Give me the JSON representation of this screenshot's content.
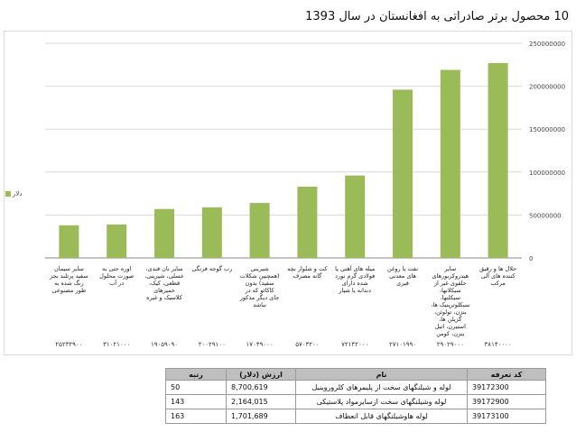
{
  "chart_data": {
    "type": "bar",
    "title": "10 محصول برتر صادراتی به افغانستان در سال 1393",
    "legend": {
      "label": "دلار",
      "position": "left"
    },
    "categories": [
      "سایر سیمان سفید پرتلند بجز رنگ شده به طور مصنوعی",
      "اوره حتی به صورت محلول در آب",
      "سایر نان قندی، عسلی، شیرینی، قطعی، کیک، خمیرهای کلاسیک و غیره",
      "رب گوجه فرنگی",
      "شیرینی (همچنین شکلات سفید) بدون کاکائو که در جای دیگر مذکور نباشد",
      "کت و شلوار بچه گانه مصرف",
      "میله های آهنی یا فولادی گرم نورد شده دارای دندانه یا شیار",
      "نفت یا روغن های معدنی قیری",
      "سایر هیدروکربورهای حلقوی غیر از سیکلانها، سیکلنها، سیکلوترپنیک ها، بنزن، تولوئن، گزیلن ها، استیرن، اتیل بنزن، کومن",
      "حلال ها و رقیق کننده های آلی مرکب"
    ],
    "values": [
      38000000,
      39000000,
      57000000,
      59000000,
      64000000,
      83000000,
      96000000,
      196000000,
      219000000,
      227000000
    ],
    "codes": [
      "۲۵۲۳۲۹۰۰",
      "۳۱۰۲۱۰۰۰",
      "۱۹۰۵۹۰۹۰",
      "۲۰۰۲۹۱۰۰",
      "۱۷۰۴۹۰۰۰",
      "۵۷۰۳۲۰۰",
      "۷۲۱۴۲۰۰۰",
      "۲۷۱۰۱۹۹۰",
      "۲۹۰۲۹۰۰۰",
      "۳۸۱۴۰۰۰۰"
    ],
    "y_ticks": [
      "0",
      "50000000",
      "100000000",
      "150000000",
      "200000000",
      "250000000"
    ],
    "ylim": [
      0,
      250000000
    ],
    "xlabel": "",
    "ylabel": "",
    "grid": true,
    "colors": {
      "bar": "#9bbb59",
      "grid": "#d9d9d9",
      "axis": "#888888"
    }
  },
  "table": {
    "headers": {
      "code": "کد تعرفه",
      "name": "نام",
      "value": "ارزش (دلار)",
      "rank": "رتبه"
    },
    "rows": [
      {
        "code": "39172300",
        "name": "لوله و شیلنگهای سخت از پلیمرهای کلروروینیل",
        "value": "8,700,619",
        "rank": "50"
      },
      {
        "code": "39172900",
        "name": "لوله وشیلنگهای سخت ازسایرمواد پلاستیکی",
        "value": "2,164,015",
        "rank": "143"
      },
      {
        "code": "39173100",
        "name": "لوله هاوشیلنگهای قابل انعطاف",
        "value": "1,701,689",
        "rank": "163"
      }
    ]
  }
}
